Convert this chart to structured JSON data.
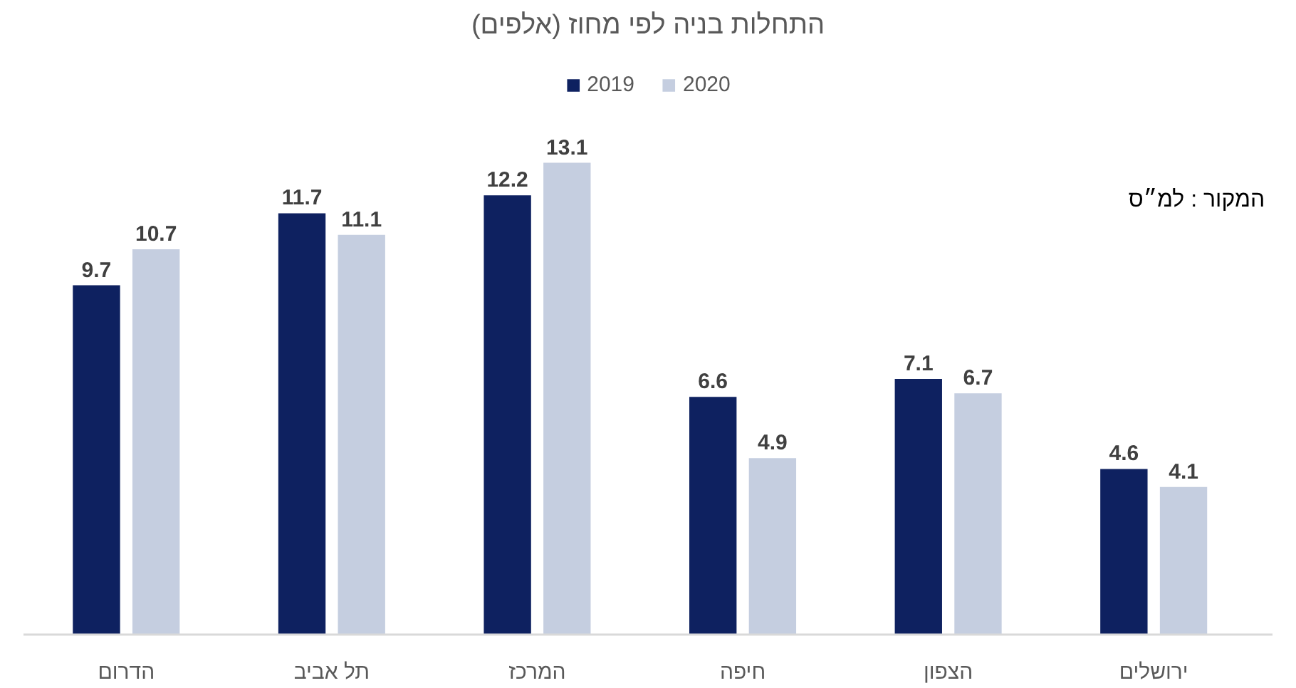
{
  "chart_data": {
    "type": "bar",
    "title": "התחלות בניה לפי מחוז (אלפים)",
    "categories": [
      "הדרום",
      "תל אביב",
      "המרכז",
      "חיפה",
      "הצפון",
      "ירושלים"
    ],
    "series": [
      {
        "name": "2019",
        "color": "#0e2160",
        "values": [
          9.7,
          11.7,
          12.2,
          6.6,
          7.1,
          4.6
        ]
      },
      {
        "name": "2020",
        "color": "#c5cee0",
        "values": [
          10.7,
          11.1,
          13.1,
          4.9,
          6.7,
          4.1
        ]
      }
    ],
    "data_labels": true,
    "legend": "top",
    "tick_labels": "x",
    "annotations": [
      "המקור : למ״ס"
    ]
  }
}
